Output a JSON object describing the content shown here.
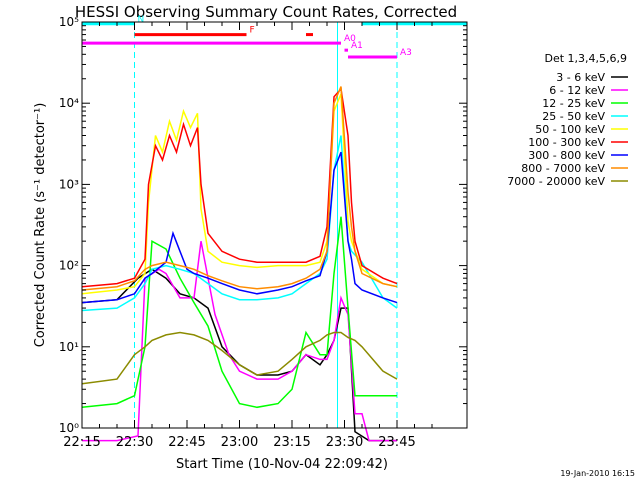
{
  "chart_data": {
    "type": "line",
    "title": "HESSI Observing Summary Count Rates, Corrected",
    "xlabel": "Start Time (10-Nov-04 22:09:42)",
    "ylabel": "Corrected Count Rate (s⁻¹ detector⁻¹)",
    "y_scale": "log",
    "ylim": [
      1,
      100000
    ],
    "xlim": [
      10,
      120
    ],
    "x_unit": "minutes after 22:05",
    "x_ticks": [
      {
        "x": 10,
        "label": "22:15"
      },
      {
        "x": 25,
        "label": "22:30"
      },
      {
        "x": 40,
        "label": "22:45"
      },
      {
        "x": 55,
        "label": "23:00"
      },
      {
        "x": 70,
        "label": "23:15"
      },
      {
        "x": 85,
        "label": "23:30"
      },
      {
        "x": 100,
        "label": "23:45"
      }
    ],
    "y_ticks": [
      {
        "y": 1,
        "label": "10⁰"
      },
      {
        "y": 10,
        "label": "10¹"
      },
      {
        "y": 100,
        "label": "10²"
      },
      {
        "y": 1000,
        "label": "10³"
      },
      {
        "y": 10000,
        "label": "10⁴"
      },
      {
        "y": 100000,
        "label": "10⁵"
      }
    ],
    "legend_title": "Det 1,3,4,5,6,9",
    "legend_position": "right",
    "series": [
      {
        "name": "3 - 6 keV",
        "color": "#000000",
        "x": [
          10,
          20,
          26,
          30,
          34,
          38,
          42,
          46,
          50,
          55,
          60,
          66,
          70,
          74,
          78,
          80,
          82,
          84,
          86,
          88,
          92,
          96,
          100
        ],
        "y": [
          35,
          38,
          70,
          90,
          70,
          45,
          40,
          30,
          10,
          6,
          4.5,
          4.5,
          5,
          8,
          6,
          8,
          12,
          30,
          30,
          0.9,
          0.7,
          0.7,
          0.7
        ]
      },
      {
        "name": "6 - 12 keV",
        "color": "#ff00ff",
        "x": [
          10,
          20,
          26,
          28,
          32,
          34,
          38,
          42,
          44,
          48,
          52,
          55,
          60,
          66,
          70,
          74,
          78,
          80,
          82,
          84,
          86,
          88,
          90,
          92,
          96,
          100
        ],
        "y": [
          0.7,
          0.7,
          0.8,
          70,
          90,
          80,
          40,
          40,
          200,
          25,
          8,
          5,
          4,
          4,
          5,
          8,
          7,
          7,
          12,
          40,
          25,
          1.5,
          1.5,
          0.7,
          0.7,
          0.7
        ]
      },
      {
        "name": "12 - 25 keV",
        "color": "#00ff00",
        "x": [
          10,
          20,
          25,
          28,
          30,
          34,
          38,
          42,
          46,
          50,
          55,
          60,
          66,
          70,
          74,
          78,
          80,
          82,
          84,
          86,
          88,
          90,
          92,
          96,
          100
        ],
        "y": [
          1.8,
          2.0,
          2.5,
          10,
          200,
          160,
          70,
          35,
          18,
          5,
          2,
          1.8,
          2,
          3,
          15,
          8,
          8,
          80,
          400,
          30,
          2.5,
          2.5,
          2.5,
          2.5,
          2.5
        ]
      },
      {
        "name": "25 - 50 keV",
        "color": "#00ffff",
        "x": [
          10,
          20,
          25,
          28,
          30,
          34,
          38,
          42,
          46,
          50,
          55,
          60,
          66,
          70,
          74,
          78,
          80,
          82,
          84,
          86,
          87,
          90,
          96,
          100
        ],
        "y": [
          28,
          30,
          40,
          60,
          90,
          100,
          90,
          80,
          60,
          45,
          38,
          38,
          40,
          45,
          60,
          80,
          120,
          1500,
          4000,
          200,
          150,
          110,
          40,
          30
        ]
      },
      {
        "name": "50 - 100 keV",
        "color": "#ffff00",
        "x": [
          10,
          20,
          25,
          28,
          29,
          31,
          33,
          35,
          37,
          39,
          41,
          43,
          44,
          46,
          50,
          55,
          60,
          66,
          70,
          74,
          78,
          80,
          82,
          84,
          86,
          87,
          90,
          96,
          100
        ],
        "y": [
          45,
          50,
          55,
          80,
          600,
          4000,
          2500,
          6000,
          3500,
          8000,
          5000,
          7500,
          500,
          150,
          110,
          100,
          95,
          100,
          100,
          100,
          110,
          200,
          8000,
          13000,
          350,
          200,
          90,
          60,
          55
        ]
      },
      {
        "name": "100 - 300 keV",
        "color": "#ff0000",
        "x": [
          10,
          20,
          25,
          28,
          29,
          31,
          33,
          35,
          37,
          39,
          41,
          43,
          44,
          46,
          50,
          55,
          60,
          66,
          70,
          74,
          78,
          80,
          82,
          84,
          86,
          87,
          88,
          90,
          96,
          100
        ],
        "y": [
          55,
          60,
          70,
          120,
          1000,
          3000,
          2000,
          4000,
          2500,
          5500,
          3000,
          5000,
          1000,
          250,
          150,
          120,
          110,
          110,
          110,
          110,
          130,
          300,
          12000,
          15000,
          4000,
          600,
          200,
          100,
          70,
          60
        ]
      },
      {
        "name": "300 - 800 keV",
        "color": "#0000ff",
        "x": [
          10,
          20,
          25,
          28,
          30,
          34,
          36,
          38,
          40,
          42,
          46,
          50,
          55,
          60,
          66,
          70,
          74,
          78,
          80,
          82,
          84,
          86,
          87,
          88,
          90,
          96,
          100
        ],
        "y": [
          35,
          38,
          45,
          70,
          80,
          110,
          250,
          150,
          90,
          80,
          70,
          60,
          50,
          45,
          50,
          55,
          65,
          75,
          150,
          1500,
          2500,
          200,
          120,
          60,
          50,
          40,
          35
        ]
      },
      {
        "name": "800 - 7000 keV",
        "color": "#ff8c00",
        "x": [
          10,
          20,
          25,
          28,
          30,
          34,
          38,
          40,
          42,
          46,
          50,
          55,
          60,
          66,
          70,
          74,
          78,
          80,
          82,
          84,
          86,
          87,
          88,
          90,
          96,
          100
        ],
        "y": [
          50,
          55,
          65,
          90,
          100,
          110,
          100,
          95,
          90,
          75,
          65,
          55,
          52,
          55,
          60,
          70,
          90,
          150,
          10000,
          16000,
          800,
          300,
          150,
          80,
          60,
          55
        ]
      },
      {
        "name": "7000 - 20000 keV",
        "color": "#8b8b00",
        "x": [
          10,
          20,
          25,
          28,
          30,
          34,
          38,
          42,
          46,
          50,
          55,
          60,
          66,
          70,
          74,
          78,
          80,
          82,
          84,
          86,
          88,
          90,
          96,
          100
        ],
        "y": [
          3.5,
          4,
          8,
          10,
          12,
          14,
          15,
          14,
          12,
          9,
          6,
          4.5,
          5,
          7,
          10,
          12,
          14,
          15,
          15,
          13,
          12,
          10,
          5,
          4
        ]
      }
    ],
    "markers": [
      {
        "label": "N",
        "color": "#00ffff",
        "segments": [
          [
            10,
            25
          ],
          [
            90,
            120
          ]
        ],
        "level": 95000
      },
      {
        "label": "F",
        "color": "#ff0000",
        "segments": [
          [
            25,
            57
          ],
          [
            74,
            76
          ]
        ],
        "level": 70000
      },
      {
        "label": "A0",
        "color": "#ff00ff",
        "segments": [
          [
            10,
            84
          ]
        ],
        "level": 55000
      },
      {
        "label": "A1",
        "color": "#ff00ff",
        "segments": [
          [
            85,
            86
          ]
        ],
        "level": 45000
      },
      {
        "label": "A3",
        "color": "#ff00ff",
        "segments": [
          [
            86,
            100
          ]
        ],
        "level": 37000
      }
    ],
    "vlines": [
      {
        "x": 25,
        "color": "#00ffff",
        "style": "dashed"
      },
      {
        "x": 83,
        "color": "#00ffff",
        "style": "solid"
      },
      {
        "x": 100,
        "color": "#00ffff",
        "style": "dashed"
      }
    ]
  },
  "footer_date": "19-Jan-2010 16:15"
}
